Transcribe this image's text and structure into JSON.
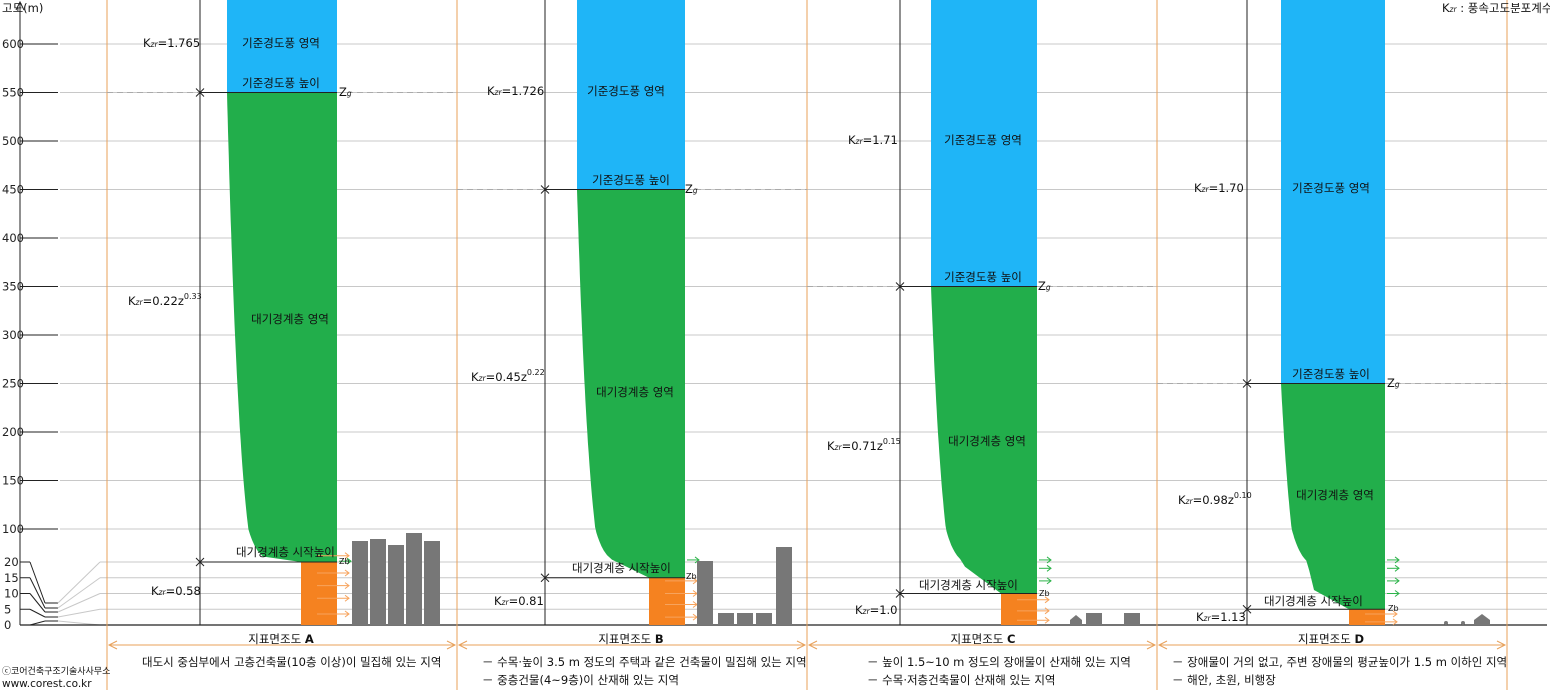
{
  "axis": {
    "title": "고도(m)",
    "upper_ticks": [
      600,
      550,
      500,
      450,
      400,
      350,
      300,
      250,
      200,
      150,
      100
    ],
    "lower_ticks": [
      20,
      15,
      10,
      5,
      0
    ]
  },
  "legend": {
    "kzr_symbol": "K",
    "kzr_sub": "zr",
    "text": " : 풍속고도분포계수"
  },
  "copyright": {
    "line1": "ⓒ코어건축구조기술사사무소",
    "line2": "www.corest.co.kr"
  },
  "colors": {
    "gradient_wind": "#1fb5f7",
    "boundary_layer": "#22ae4b",
    "base": "#f58220",
    "building": "#777777",
    "frame": "#e8a15a"
  },
  "panels": [
    {
      "id": "A",
      "zg": 550,
      "zb": 20,
      "alpha": 0.33,
      "region_gradient": "기준경도풍 영역",
      "gradient_height": "기준경도풍 높이",
      "region_boundary": "대기경계층 영역",
      "start_height": "대기경계층 시작높이",
      "kzr_top": "=1.765",
      "kzr_formula_coef": "=0.22z",
      "kzr_formula_exp": "0.33",
      "kzr_bottom": "=0.58",
      "zg_label": "Z",
      "zg_sub": "g",
      "zb_label": "Zb",
      "category_prefix": "지표면조도 ",
      "category": "A",
      "desc": [
        "대도시 중심부에서 고층건축물(10층 이상)이 밀집해 있는 지역"
      ]
    },
    {
      "id": "B",
      "zg": 450,
      "zb": 15,
      "alpha": 0.22,
      "region_gradient": "기준경도풍 영역",
      "gradient_height": "기준경도풍 높이",
      "region_boundary": "대기경계층 영역",
      "start_height": "대기경계층 시작높이",
      "kzr_top": "=1.726",
      "kzr_formula_coef": "=0.45z",
      "kzr_formula_exp": "0.22",
      "kzr_bottom": "=0.81",
      "zg_label": "Z",
      "zg_sub": "g",
      "zb_label": "Zb",
      "category_prefix": "지표면조도 ",
      "category": "B",
      "desc": [
        "－ 수목·높이 3.5 m 정도의 주택과 같은 건축물이 밀집해 있는 지역",
        "－ 중층건물(4~9층)이 산재해 있는 지역"
      ]
    },
    {
      "id": "C",
      "zg": 350,
      "zb": 10,
      "alpha": 0.15,
      "region_gradient": "기준경도풍 영역",
      "gradient_height": "기준경도풍 높이",
      "region_boundary": "대기경계층 영역",
      "start_height": "대기경계층 시작높이",
      "kzr_top": "=1.71",
      "kzr_formula_coef": "=0.71z",
      "kzr_formula_exp": "0.15",
      "kzr_bottom": "=1.0",
      "zg_label": "Z",
      "zg_sub": "g",
      "zb_label": "Zb",
      "category_prefix": "지표면조도 ",
      "category": "C",
      "desc": [
        "－ 높이 1.5~10 m 정도의 장애물이 산재해 있는 지역",
        "－ 수목·저층건축물이 산재해 있는 지역"
      ]
    },
    {
      "id": "D",
      "zg": 250,
      "zb": 5,
      "alpha": 0.1,
      "region_gradient": "기준경도풍 영역",
      "gradient_height": "기준경도풍 높이",
      "region_boundary": "대기경계층 영역",
      "start_height": "대기경계층 시작높이",
      "kzr_top": "=1.70",
      "kzr_formula_coef": "=0.98z",
      "kzr_formula_exp": "0.10",
      "kzr_bottom": "=1.13",
      "zg_label": "Z",
      "zg_sub": "g",
      "zb_label": "Zb",
      "category_prefix": "지표면조도 ",
      "category": "D",
      "desc": [
        "－ 장애물이 거의 없고, 주변 장애물의 평균높이가 1.5 m 이하인 지역",
        "－ 해안, 초원, 비행장"
      ]
    }
  ]
}
